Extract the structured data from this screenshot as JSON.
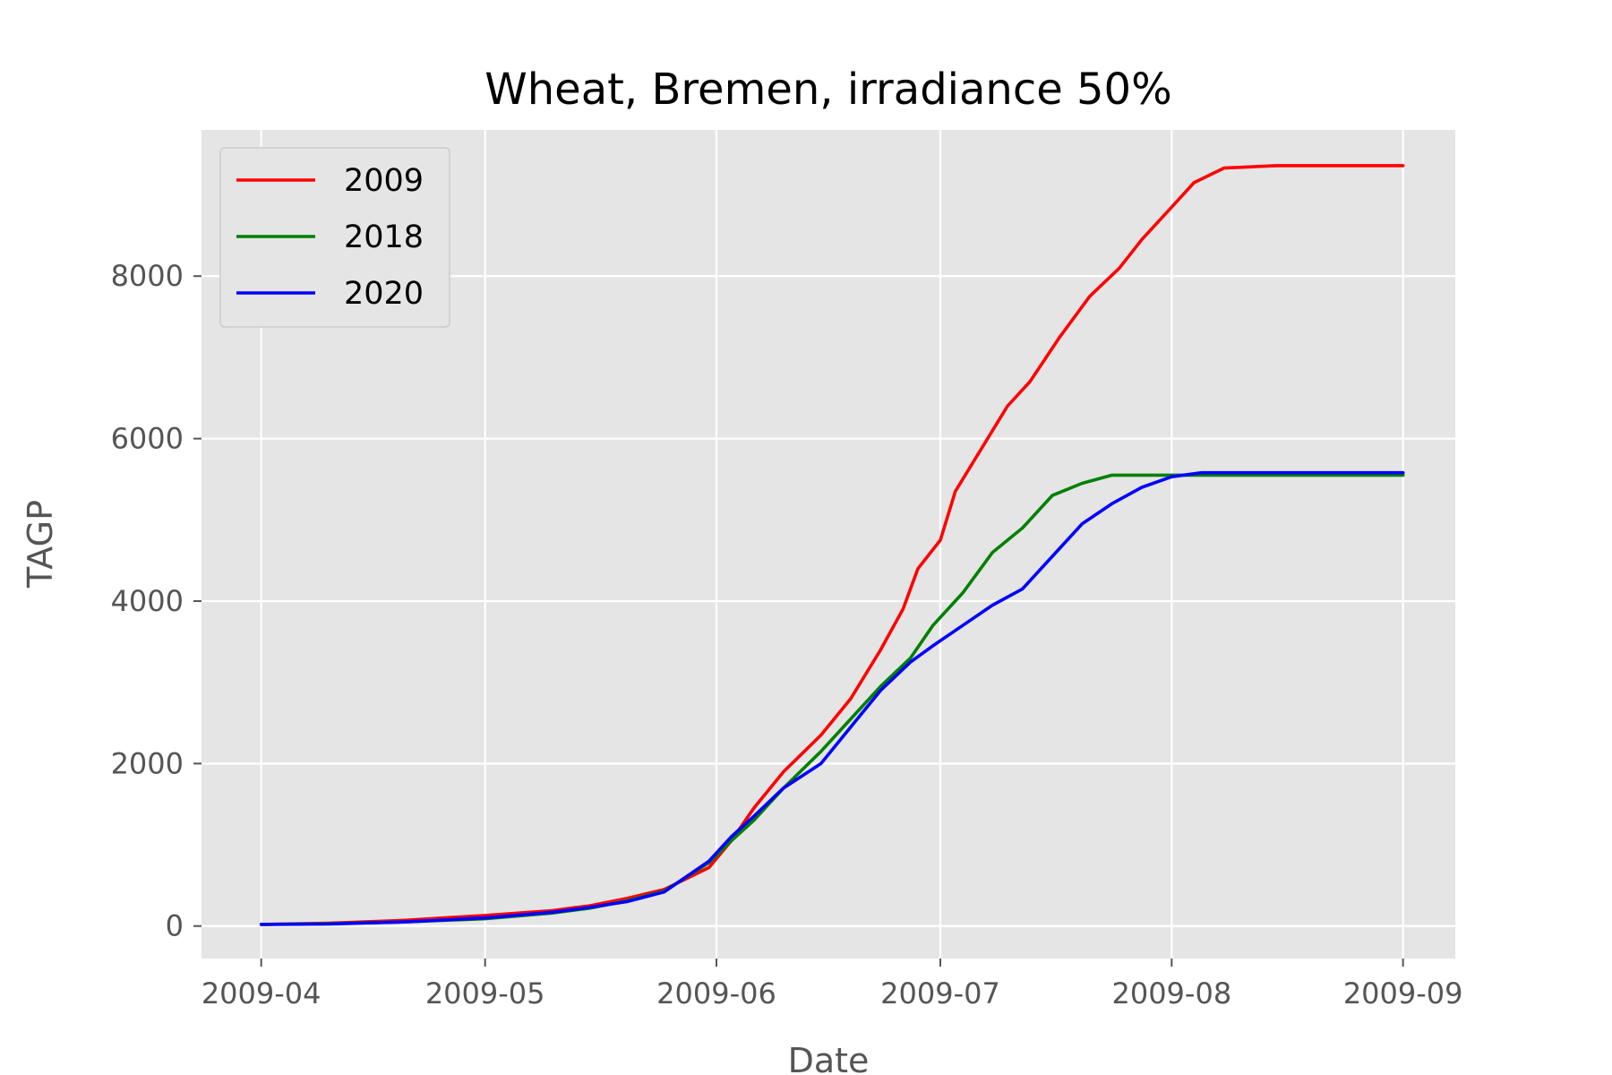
{
  "chart_data": {
    "type": "line",
    "title": "Wheat, Bremen, irradiance 50%",
    "xlabel": "Date",
    "ylabel": "TAGP",
    "x_ticks": [
      "2009-04-01",
      "2009-05-01",
      "2009-06-01",
      "2009-07-01",
      "2009-08-01",
      "2009-09-01"
    ],
    "x_tick_labels": [
      "2009-04",
      "2009-05",
      "2009-06",
      "2009-07",
      "2009-08",
      "2009-09"
    ],
    "xlim": [
      "2009-03-24",
      "2009-09-08"
    ],
    "y_ticks": [
      0,
      2000,
      4000,
      6000,
      8000
    ],
    "y_tick_labels": [
      "0",
      "2000",
      "4000",
      "6000",
      "8000"
    ],
    "ylim": [
      -400,
      9800
    ],
    "grid": true,
    "background": "#e5e5e5",
    "legend_position": "top-left",
    "series": [
      {
        "name": "2009",
        "color": "#ff0000",
        "points": [
          [
            "2009-04-01",
            20
          ],
          [
            "2009-04-10",
            35
          ],
          [
            "2009-04-20",
            70
          ],
          [
            "2009-05-01",
            130
          ],
          [
            "2009-05-10",
            190
          ],
          [
            "2009-05-15",
            250
          ],
          [
            "2009-05-20",
            340
          ],
          [
            "2009-05-25",
            450
          ],
          [
            "2009-05-31",
            720
          ],
          [
            "2009-06-03",
            1050
          ],
          [
            "2009-06-06",
            1450
          ],
          [
            "2009-06-10",
            1900
          ],
          [
            "2009-06-15",
            2350
          ],
          [
            "2009-06-19",
            2800
          ],
          [
            "2009-06-23",
            3400
          ],
          [
            "2009-06-26",
            3900
          ],
          [
            "2009-06-28",
            4400
          ],
          [
            "2009-07-01",
            4750
          ],
          [
            "2009-07-03",
            5350
          ],
          [
            "2009-07-06",
            5800
          ],
          [
            "2009-07-10",
            6400
          ],
          [
            "2009-07-13",
            6700
          ],
          [
            "2009-07-17",
            7250
          ],
          [
            "2009-07-21",
            7750
          ],
          [
            "2009-07-25",
            8100
          ],
          [
            "2009-07-28",
            8450
          ],
          [
            "2009-08-01",
            8850
          ],
          [
            "2009-08-04",
            9150
          ],
          [
            "2009-08-08",
            9330
          ],
          [
            "2009-08-15",
            9360
          ],
          [
            "2009-09-01",
            9360
          ]
        ]
      },
      {
        "name": "2018",
        "color": "#008000",
        "points": [
          [
            "2009-04-01",
            20
          ],
          [
            "2009-04-10",
            30
          ],
          [
            "2009-04-20",
            50
          ],
          [
            "2009-05-01",
            90
          ],
          [
            "2009-05-10",
            160
          ],
          [
            "2009-05-15",
            220
          ],
          [
            "2009-05-20",
            310
          ],
          [
            "2009-05-25",
            430
          ],
          [
            "2009-05-31",
            780
          ],
          [
            "2009-06-03",
            1050
          ],
          [
            "2009-06-06",
            1300
          ],
          [
            "2009-06-10",
            1700
          ],
          [
            "2009-06-15",
            2150
          ],
          [
            "2009-06-19",
            2550
          ],
          [
            "2009-06-23",
            2950
          ],
          [
            "2009-06-27",
            3300
          ],
          [
            "2009-06-30",
            3700
          ],
          [
            "2009-07-04",
            4100
          ],
          [
            "2009-07-08",
            4600
          ],
          [
            "2009-07-12",
            4900
          ],
          [
            "2009-07-16",
            5300
          ],
          [
            "2009-07-20",
            5450
          ],
          [
            "2009-07-24",
            5550
          ],
          [
            "2009-08-01",
            5550
          ],
          [
            "2009-09-01",
            5550
          ]
        ]
      },
      {
        "name": "2020",
        "color": "#0000ff",
        "points": [
          [
            "2009-04-01",
            20
          ],
          [
            "2009-04-10",
            25
          ],
          [
            "2009-04-20",
            50
          ],
          [
            "2009-05-01",
            100
          ],
          [
            "2009-05-10",
            170
          ],
          [
            "2009-05-15",
            230
          ],
          [
            "2009-05-20",
            300
          ],
          [
            "2009-05-25",
            420
          ],
          [
            "2009-05-31",
            800
          ],
          [
            "2009-06-03",
            1100
          ],
          [
            "2009-06-06",
            1350
          ],
          [
            "2009-06-10",
            1700
          ],
          [
            "2009-06-15",
            2000
          ],
          [
            "2009-06-19",
            2450
          ],
          [
            "2009-06-23",
            2900
          ],
          [
            "2009-06-27",
            3250
          ],
          [
            "2009-06-30",
            3450
          ],
          [
            "2009-07-04",
            3700
          ],
          [
            "2009-07-08",
            3950
          ],
          [
            "2009-07-12",
            4150
          ],
          [
            "2009-07-16",
            4550
          ],
          [
            "2009-07-20",
            4950
          ],
          [
            "2009-07-24",
            5200
          ],
          [
            "2009-07-28",
            5400
          ],
          [
            "2009-08-01",
            5530
          ],
          [
            "2009-08-05",
            5580
          ],
          [
            "2009-09-01",
            5580
          ]
        ]
      }
    ]
  }
}
